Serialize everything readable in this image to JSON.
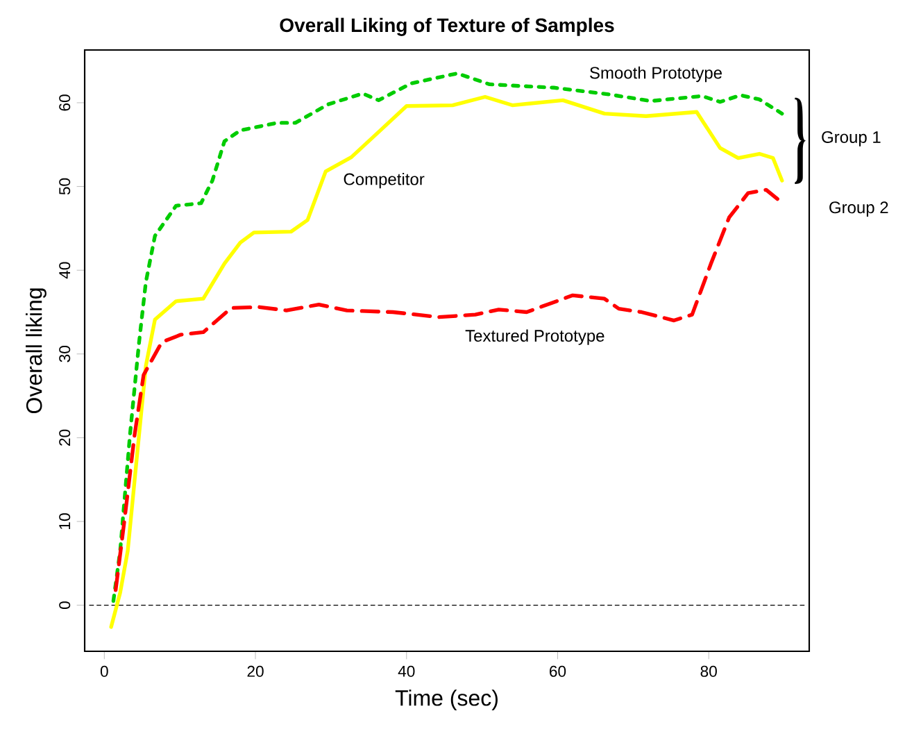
{
  "chart_data": {
    "type": "line",
    "title": "Overall Liking of Texture of Samples",
    "xlabel": "Time (sec)",
    "ylabel": "Overall liking",
    "xlim": [
      -2.6,
      93.3
    ],
    "ylim": [
      -5.5,
      66.3
    ],
    "xticks": [
      0,
      20,
      40,
      60,
      80
    ],
    "yticks": [
      0,
      10,
      20,
      30,
      40,
      50,
      60
    ],
    "grid": false,
    "legend": false,
    "marker": "none",
    "ref_lines": [
      {
        "axis": "y",
        "value": 0,
        "color": "#000000",
        "line_style": "dashed"
      }
    ],
    "annotations": [
      "Group 1",
      "Group 2"
    ],
    "series": [
      {
        "name": "Smooth Prototype",
        "color": "#00cc00",
        "line_style": "dotted",
        "x": [
          1.2,
          2.1,
          3.4,
          4.6,
          5.5,
          6.7,
          9.5,
          12.8,
          14.3,
          15.9,
          18,
          22.9,
          25.3,
          29.6,
          34.2,
          36.3,
          40.6,
          46.7,
          51,
          55,
          59.5,
          66.8,
          72.3,
          79.1,
          81.5,
          84.2,
          86.7,
          89.7
        ],
        "values": [
          0.5,
          6.5,
          20.4,
          31.4,
          38.6,
          44.1,
          47.7,
          48,
          50.7,
          55.4,
          56.7,
          57.6,
          57.6,
          59.8,
          61.1,
          60.3,
          62.3,
          63.5,
          62.2,
          62,
          61.8,
          61,
          60.2,
          60.8,
          60.1,
          60.9,
          60.4,
          58.7
        ]
      },
      {
        "name": "Competitor",
        "color": "#ffff00",
        "line_style": "solid",
        "x": [
          0.9,
          2.1,
          3.1,
          4.3,
          5.5,
          6.7,
          9.5,
          13.1,
          15.9,
          18,
          19.8,
          24.7,
          26.9,
          29.3,
          32.7,
          36.3,
          40,
          46.1,
          50.4,
          54,
          60.7,
          66.2,
          71.7,
          78.4,
          81.5,
          83.9,
          86.7,
          88.5,
          89.7
        ],
        "values": [
          -2.6,
          1.5,
          6.5,
          17.6,
          28.6,
          34.1,
          36.3,
          36.6,
          40.8,
          43.3,
          44.5,
          44.6,
          46,
          51.8,
          53.5,
          56.5,
          59.6,
          59.7,
          60.7,
          59.7,
          60.3,
          58.7,
          58.4,
          58.9,
          54.6,
          53.4,
          53.9,
          53.4,
          50.7
        ]
      },
      {
        "name": "Textured  Prototype",
        "color": "#ff0000",
        "line_style": "dashed",
        "x": [
          1.5,
          2.7,
          4,
          5.2,
          7.6,
          10.1,
          13.1,
          16.8,
          20.5,
          24.1,
          28.4,
          32.1,
          38.2,
          44.3,
          49.1,
          52.2,
          55.9,
          62,
          66.2,
          68.1,
          71.1,
          75.4,
          77.8,
          80.3,
          82.7,
          85.2,
          87.6,
          89.1
        ],
        "values": [
          1.8,
          10.4,
          20.3,
          27.5,
          31.4,
          32.3,
          32.6,
          35.5,
          35.6,
          35.2,
          35.9,
          35.2,
          35,
          34.4,
          34.7,
          35.3,
          35,
          37,
          36.6,
          35.4,
          35,
          34,
          34.7,
          40.8,
          46.3,
          49.2,
          49.6,
          48.5
        ]
      }
    ]
  }
}
